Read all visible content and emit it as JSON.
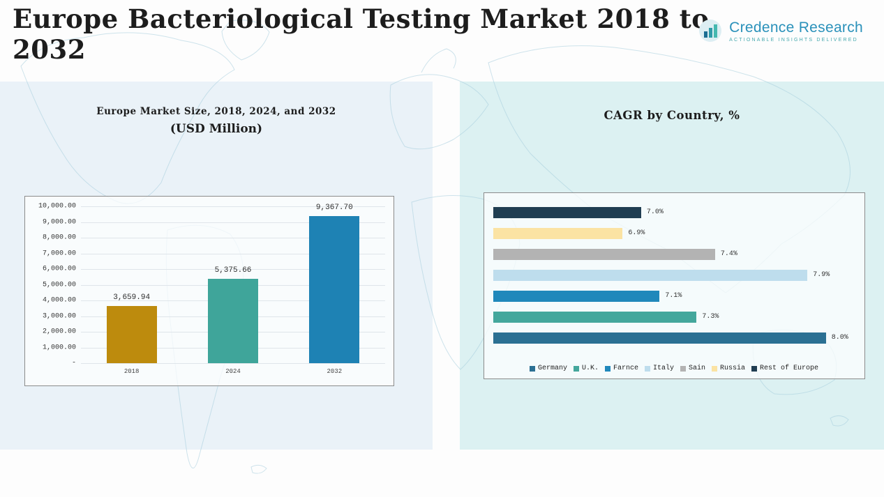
{
  "page": {
    "title_lines": [
      "Europe Bacteriological Testing Market 2018 to",
      "2032"
    ]
  },
  "logo": {
    "name": "Credence Research",
    "tagline": "Actionable Insights Delivered",
    "brand_color": "#2a91ba",
    "accent_color": "#45a8ad"
  },
  "chart_data": [
    {
      "type": "bar",
      "title": "Europe Market Size, 2018, 2024, and 2032",
      "subtitle": "(USD Million)",
      "categories": [
        "2018",
        "2024",
        "2032"
      ],
      "values": [
        3659.94,
        5375.66,
        9367.7
      ],
      "value_labels": [
        "3,659.94",
        "5,375.66",
        "9,367.70"
      ],
      "bar_colors": [
        "#bd8b0d",
        "#3fa59a",
        "#1e82b4"
      ],
      "ylim": [
        0,
        10000
      ],
      "ytick_step": 1000,
      "ytick_labels": [
        "10,000.00",
        "9,000.00",
        "8,000.00",
        "7,000.00",
        "6,000.00",
        "5,000.00",
        "4,000.00",
        "3,000.00",
        "2,000.00",
        "1,000.00",
        "-"
      ],
      "grid": true,
      "legend_position": "none"
    },
    {
      "type": "bar-horizontal",
      "title": "CAGR by Country, %",
      "series": [
        {
          "name": "Rest of Europe",
          "value": 7.0,
          "label": "7.0%",
          "color": "#203e52"
        },
        {
          "name": "Russia",
          "value": 6.9,
          "label": "6.9%",
          "color": "#fbe3a3"
        },
        {
          "name": "Sain",
          "value": 7.4,
          "label": "7.4%",
          "color": "#b3b3b3"
        },
        {
          "name": "Italy",
          "value": 7.9,
          "label": "7.9%",
          "color": "#bedded"
        },
        {
          "name": "Farnce",
          "value": 7.1,
          "label": "7.1%",
          "color": "#2088bb"
        },
        {
          "name": "U.K.",
          "value": 7.3,
          "label": "7.3%",
          "color": "#44a79c"
        },
        {
          "name": "Germany",
          "value": 8.0,
          "label": "8.0%",
          "color": "#2b7093"
        }
      ],
      "legend": [
        {
          "label": "Germany",
          "color": "#2b7093"
        },
        {
          "label": "U.K.",
          "color": "#44a79c"
        },
        {
          "label": "Farnce",
          "color": "#2088bb"
        },
        {
          "label": "Italy",
          "color": "#bedded"
        },
        {
          "label": "Sain",
          "color": "#b3b3b3"
        },
        {
          "label": "Russia",
          "color": "#fbe3a3"
        },
        {
          "label": "Rest of Europe",
          "color": "#203e52"
        }
      ],
      "xlim": [
        6.2,
        8.05
      ],
      "grid": false,
      "legend_position": "bottom"
    }
  ]
}
